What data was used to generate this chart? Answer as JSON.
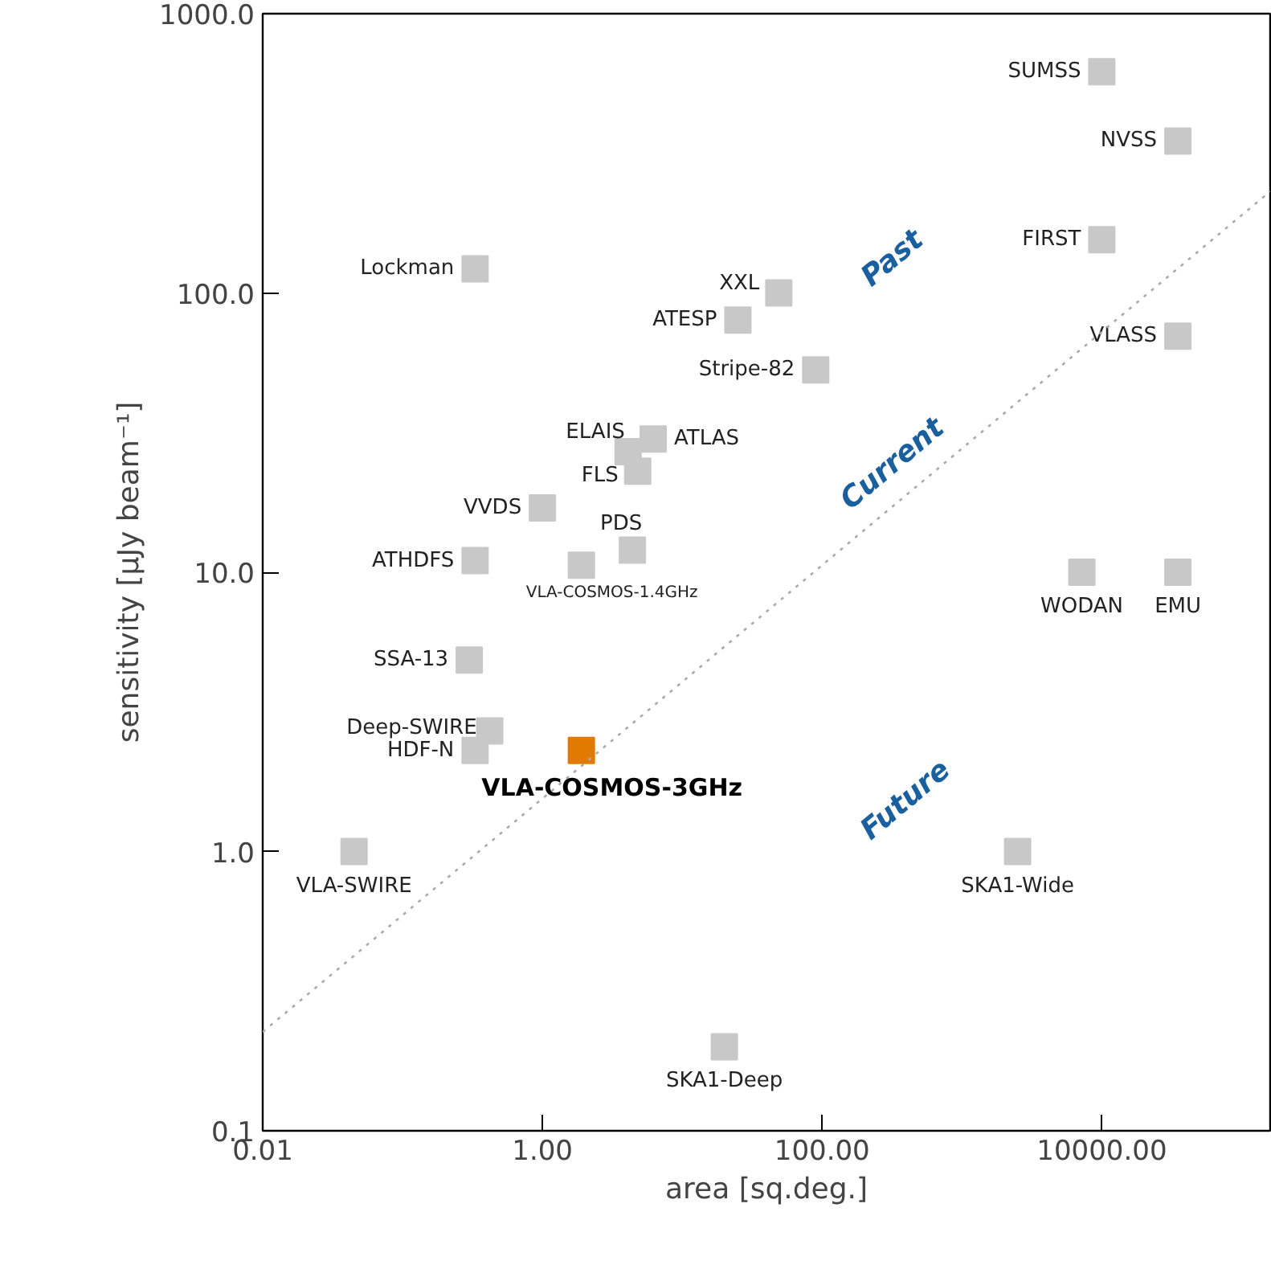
{
  "chart_data": {
    "type": "scatter",
    "xlabel": "area [sq.deg.]",
    "ylabel": "sensitivity [μJy beam⁻¹]",
    "log": "xy",
    "marker": "square",
    "grid": false,
    "xlim": [
      0.01,
      160000
    ],
    "ylim": [
      0.1,
      1000
    ],
    "xticks": [
      {
        "value": 0.01,
        "label": "0.01"
      },
      {
        "value": 1,
        "label": "1.00"
      },
      {
        "value": 100,
        "label": "100.00"
      },
      {
        "value": 10000,
        "label": "10000.00"
      }
    ],
    "yticks": [
      {
        "value": 0.1,
        "label": "0.1"
      },
      {
        "value": 1,
        "label": "1.0"
      },
      {
        "value": 10,
        "label": "10.0"
      },
      {
        "value": 100,
        "label": "100.0"
      },
      {
        "value": 1000,
        "label": "1000.0"
      }
    ],
    "annotations": [
      "Past",
      "Current",
      "Future"
    ],
    "series": [
      {
        "name": "SUMSS",
        "color": "#c8c8c8",
        "x": [
          10000
        ],
        "values": [
          620
        ]
      },
      {
        "name": "NVSS",
        "color": "#c8c8c8",
        "x": [
          35000
        ],
        "values": [
          350
        ]
      },
      {
        "name": "FIRST",
        "color": "#c8c8c8",
        "x": [
          10000
        ],
        "values": [
          155
        ]
      },
      {
        "name": "VLASS",
        "color": "#c8c8c8",
        "x": [
          35000
        ],
        "values": [
          70
        ]
      },
      {
        "name": "WODAN",
        "color": "#c8c8c8",
        "x": [
          7200
        ],
        "values": [
          10
        ]
      },
      {
        "name": "EMU",
        "color": "#c8c8c8",
        "x": [
          35000
        ],
        "values": [
          10
        ]
      },
      {
        "name": "SKA1-Wide",
        "color": "#c8c8c8",
        "x": [
          2500
        ],
        "values": [
          1
        ]
      },
      {
        "name": "SKA1-Deep",
        "color": "#c8c8c8",
        "x": [
          20
        ],
        "values": [
          0.2
        ]
      },
      {
        "name": "XXL",
        "color": "#c8c8c8",
        "x": [
          49
        ],
        "values": [
          100
        ]
      },
      {
        "name": "ATESP",
        "color": "#c8c8c8",
        "x": [
          25
        ],
        "values": [
          80
        ]
      },
      {
        "name": "Stripe-82",
        "color": "#c8c8c8",
        "x": [
          90
        ],
        "values": [
          53
        ]
      },
      {
        "name": "ATLAS",
        "color": "#c8c8c8",
        "x": [
          6.2
        ],
        "values": [
          30
        ]
      },
      {
        "name": "ELAIS",
        "color": "#c8c8c8",
        "x": [
          4.1
        ],
        "values": [
          27
        ]
      },
      {
        "name": "FLS",
        "color": "#c8c8c8",
        "x": [
          4.8
        ],
        "values": [
          23
        ]
      },
      {
        "name": "VVDS",
        "color": "#c8c8c8",
        "x": [
          1
        ],
        "values": [
          17
        ]
      },
      {
        "name": "PDS",
        "color": "#c8c8c8",
        "x": [
          4.4
        ],
        "values": [
          12
        ]
      },
      {
        "name": "VLA-COSMOS-1.4GHz",
        "color": "#c8c8c8",
        "x": [
          1.9
        ],
        "values": [
          10.6
        ]
      },
      {
        "name": "ATHDFS",
        "color": "#c8c8c8",
        "x": [
          0.33
        ],
        "values": [
          11
        ]
      },
      {
        "name": "Lockman",
        "color": "#c8c8c8",
        "x": [
          0.33
        ],
        "values": [
          122
        ]
      },
      {
        "name": "SSA-13",
        "color": "#c8c8c8",
        "x": [
          0.3
        ],
        "values": [
          4.85
        ]
      },
      {
        "name": "Deep-SWIRE",
        "color": "#c8c8c8",
        "x": [
          0.42
        ],
        "values": [
          2.7
        ]
      },
      {
        "name": "HDF-N",
        "color": "#c8c8c8",
        "x": [
          0.33
        ],
        "values": [
          2.3
        ]
      },
      {
        "name": "VLA-COSMOS-3GHz",
        "color": "#e07b00",
        "x": [
          1.9
        ],
        "values": [
          2.3
        ]
      },
      {
        "name": "VLA-SWIRE",
        "color": "#c8c8c8",
        "x": [
          0.045
        ],
        "values": [
          1
        ]
      },
      {
        "type": "line",
        "color": "#aaaaaa",
        "line_style": "dotted",
        "marker": "none",
        "x": [
          0.01,
          160000
        ],
        "values": [
          0.226,
          231
        ]
      }
    ]
  }
}
